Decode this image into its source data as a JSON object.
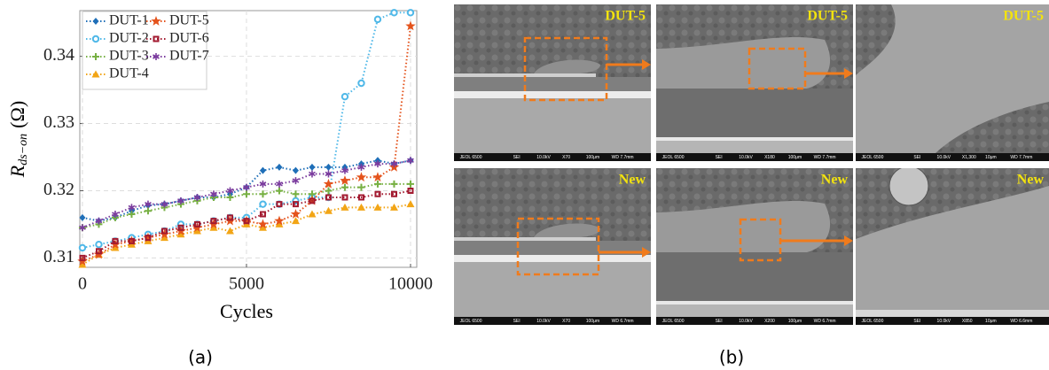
{
  "chart_data": {
    "type": "line",
    "x_label": "Cycles",
    "y_label": {
      "symbol": "R",
      "subscript": "ds−on",
      "unit": "(Ω)"
    },
    "x": [
      0,
      500,
      1000,
      1500,
      2000,
      2500,
      3000,
      3500,
      4000,
      4500,
      5000,
      5500,
      6000,
      6500,
      7000,
      7500,
      8000,
      8500,
      9000,
      9500,
      10000
    ],
    "series": [
      {
        "name": "DUT-1",
        "color": "#1f6fb8",
        "marker": "diamond",
        "values": [
          0.316,
          0.3155,
          0.316,
          0.317,
          0.3178,
          0.318,
          0.3185,
          0.319,
          0.319,
          0.3195,
          0.3205,
          0.323,
          0.3235,
          0.323,
          0.3235,
          0.3235,
          0.3235,
          0.324,
          0.3245,
          0.324,
          0.3245
        ]
      },
      {
        "name": "DUT-2",
        "color": "#4fb8e8",
        "marker": "circle",
        "values": [
          0.3115,
          0.312,
          0.3125,
          0.313,
          0.3135,
          0.314,
          0.315,
          0.315,
          0.3155,
          0.316,
          0.316,
          0.318,
          0.318,
          0.3185,
          0.319,
          0.319,
          0.334,
          0.336,
          0.3455,
          0.3465,
          0.3465
        ]
      },
      {
        "name": "DUT-3",
        "color": "#77b043",
        "marker": "plus",
        "values": [
          0.3145,
          0.315,
          0.316,
          0.3165,
          0.317,
          0.3175,
          0.318,
          0.3185,
          0.319,
          0.319,
          0.3195,
          0.3195,
          0.32,
          0.3195,
          0.3195,
          0.32,
          0.3205,
          0.3205,
          0.321,
          0.321,
          0.321
        ]
      },
      {
        "name": "DUT-4",
        "color": "#f2a516",
        "marker": "triangle",
        "values": [
          0.309,
          0.3105,
          0.3115,
          0.312,
          0.3125,
          0.313,
          0.3135,
          0.314,
          0.3145,
          0.314,
          0.315,
          0.3145,
          0.315,
          0.3155,
          0.3165,
          0.317,
          0.3175,
          0.3175,
          0.3175,
          0.3175,
          0.318
        ]
      },
      {
        "name": "DUT-5",
        "color": "#e4531c",
        "marker": "star",
        "values": [
          0.3095,
          0.3105,
          0.312,
          0.3125,
          0.313,
          0.3135,
          0.314,
          0.3145,
          0.315,
          0.3155,
          0.3155,
          0.315,
          0.3155,
          0.3165,
          0.3185,
          0.321,
          0.3215,
          0.322,
          0.322,
          0.3235,
          0.3445
        ]
      },
      {
        "name": "DUT-6",
        "color": "#a2192f",
        "marker": "square",
        "values": [
          0.31,
          0.311,
          0.3125,
          0.3125,
          0.313,
          0.314,
          0.3145,
          0.315,
          0.3155,
          0.316,
          0.3155,
          0.3165,
          0.318,
          0.318,
          0.3185,
          0.319,
          0.319,
          0.319,
          0.3195,
          0.3195,
          0.32
        ]
      },
      {
        "name": "DUT-7",
        "color": "#7b3c9e",
        "marker": "asterisk",
        "values": [
          0.3145,
          0.3155,
          0.3165,
          0.3175,
          0.318,
          0.318,
          0.3185,
          0.319,
          0.3195,
          0.32,
          0.3205,
          0.321,
          0.321,
          0.3215,
          0.3225,
          0.3225,
          0.323,
          0.3235,
          0.324,
          0.324,
          0.3245
        ]
      }
    ],
    "xlim": [
      -80,
      10190
    ],
    "xticks": [
      0,
      5000,
      10000
    ],
    "ylim": [
      0.3086,
      0.3468
    ],
    "yticks": [
      0.31,
      0.32,
      0.33,
      0.34
    ],
    "grid": true,
    "legend": "upper-left"
  },
  "panels": {
    "a_label": "(a)",
    "b_label": "(b)",
    "images": [
      {
        "tag": "DUT-5",
        "footer": [
          "JEOL 6500",
          "SEI",
          "10.0kV",
          "X70",
          "100μm",
          "WD 7.7mm"
        ]
      },
      {
        "tag": "DUT-5",
        "footer": [
          "JEOL 6500",
          "SEI",
          "10.0kV",
          "X180",
          "100μm",
          "WD 7.7mm"
        ]
      },
      {
        "tag": "DUT-5",
        "footer": [
          "JEOL 6500",
          "SEI",
          "10.0kV",
          "X1,300",
          "10μm",
          "WD 7.7mm"
        ]
      },
      {
        "tag": "New",
        "footer": [
          "JEOL 6500",
          "SEI",
          "10.0kV",
          "X70",
          "100μm",
          "WD 6.7mm"
        ]
      },
      {
        "tag": "New",
        "footer": [
          "JEOL 6500",
          "SEI",
          "10.0kV",
          "X200",
          "100μm",
          "WD 6.7mm"
        ]
      },
      {
        "tag": "New",
        "footer": [
          "JEOL 6500",
          "SEI",
          "10.0kV",
          "X850",
          "10μm",
          "WD 6.6mm"
        ]
      }
    ]
  }
}
